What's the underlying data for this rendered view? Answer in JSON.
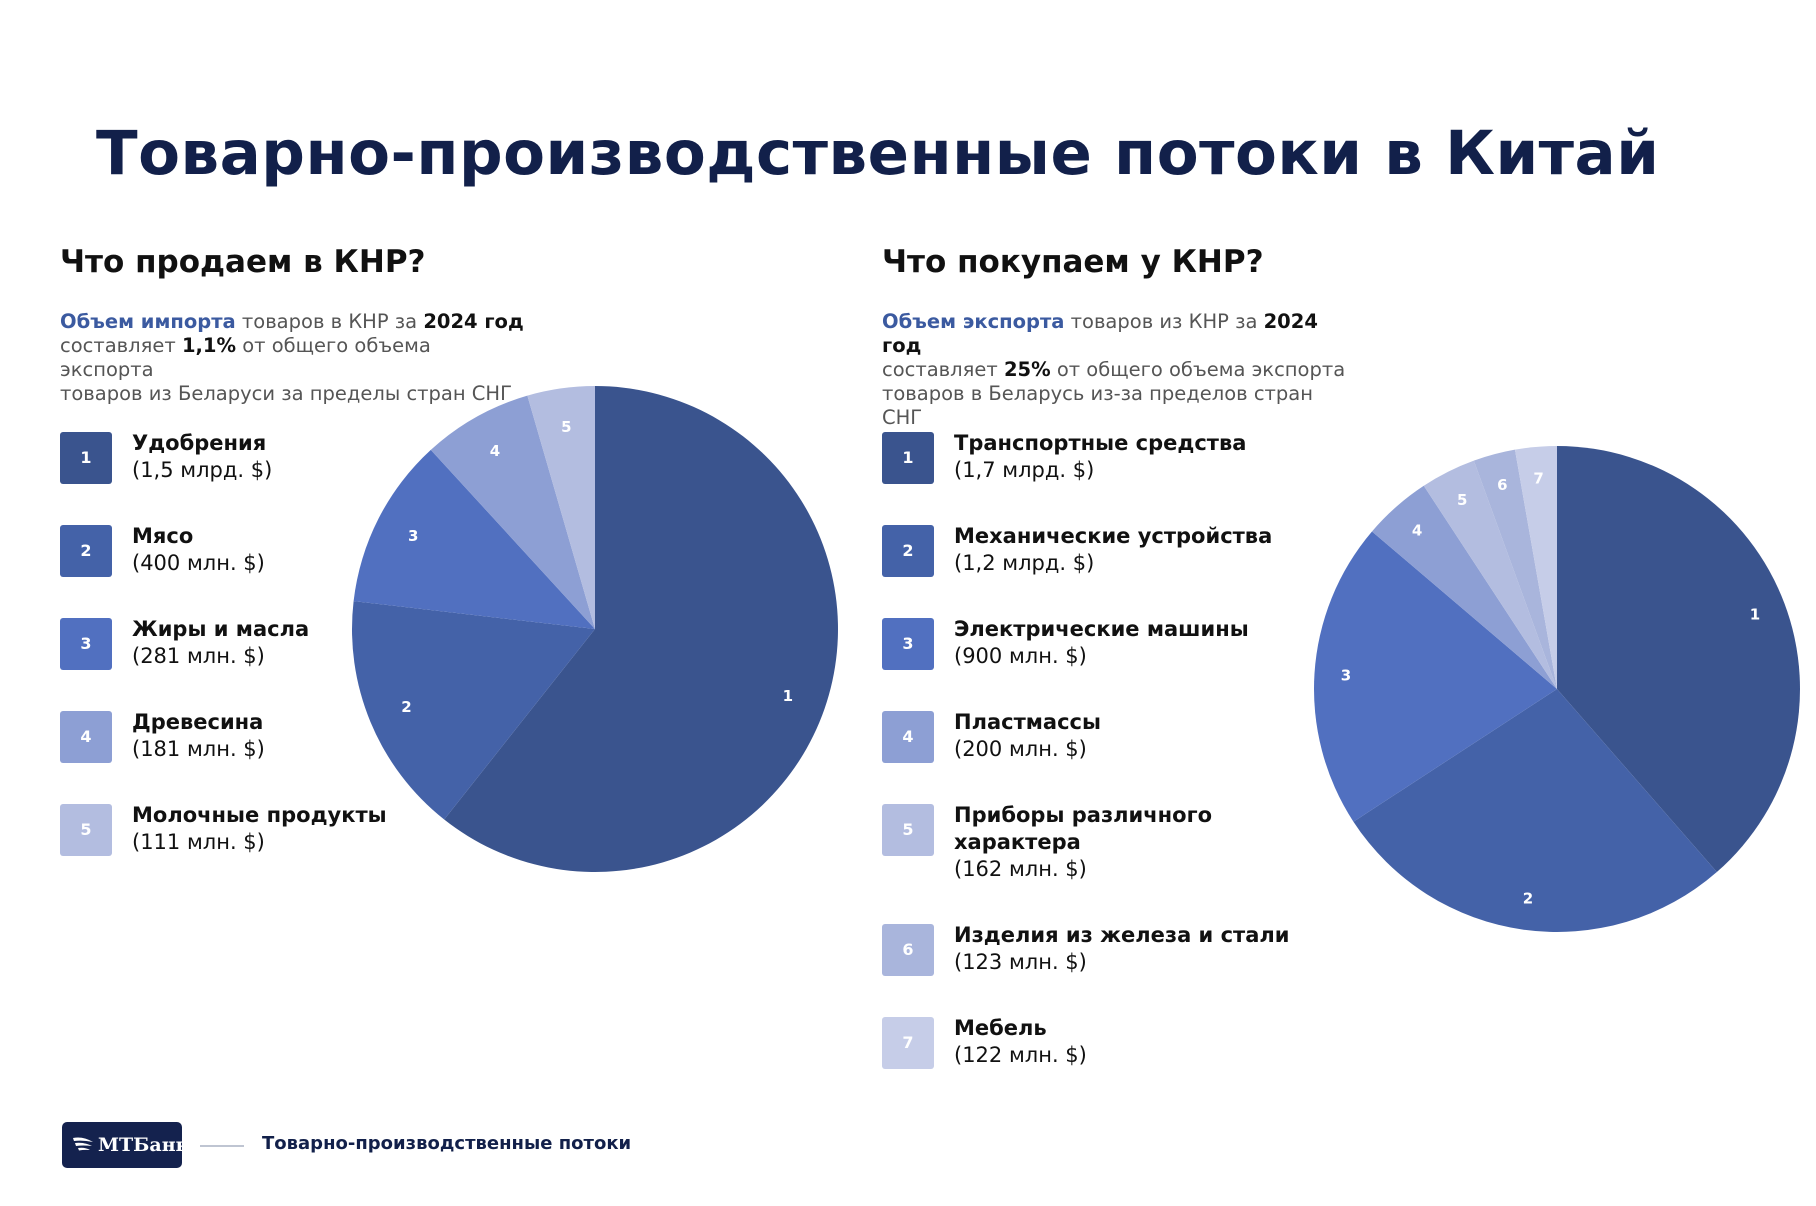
{
  "title": "Товарно-производственные потоки в Китай",
  "colors": [
    "#3a548e",
    "#4462a8",
    "#5170c0",
    "#8d9fd4",
    "#b3bde0",
    "#a9b5dc",
    "#c6cde8"
  ],
  "left": {
    "heading": "Что продаем в КНР?",
    "desc": {
      "label": "Объем импорта",
      "text1": " товаров в КНР за ",
      "year": "2024 год",
      "text2": "составляет ",
      "share": "1,1%",
      "text3": " от общего объема экспорта",
      "text4": "товаров из Беларуси за пределы стран СНГ"
    },
    "items": [
      {
        "num": "1",
        "name": "Удобрения",
        "value": "(1,5 млрд. $)"
      },
      {
        "num": "2",
        "name": "Мясо",
        "value": "(400 млн. $)"
      },
      {
        "num": "3",
        "name": "Жиры и масла",
        "value": "(281 млн. $)"
      },
      {
        "num": "4",
        "name": "Древесина",
        "value": "(181 млн. $)"
      },
      {
        "num": "5",
        "name": "Молочные продукты",
        "value": "(111 млн. $)"
      }
    ]
  },
  "right": {
    "heading": "Что покупаем у КНР?",
    "desc": {
      "label": "Объем экспорта",
      "text1": " товаров из КНР за ",
      "year": "2024 год",
      "text2": "составляет ",
      "share": "25%",
      "text3": " от общего объема экспорта",
      "text4": "товаров в Беларусь из-за пределов стран СНГ"
    },
    "items": [
      {
        "num": "1",
        "name": "Транспортные средства",
        "value": "(1,7 млрд. $)"
      },
      {
        "num": "2",
        "name": "Механические устройства",
        "value": "(1,2 млрд. $)"
      },
      {
        "num": "3",
        "name": "Электрические машины",
        "value": "(900 млн. $)"
      },
      {
        "num": "4",
        "name": "Пластмассы",
        "value": "(200 млн. $)"
      },
      {
        "num": "5",
        "name": "Приборы различного характера",
        "value": "(162 млн. $)"
      },
      {
        "num": "6",
        "name": "Изделия из железа и стали",
        "value": "(123 млн. $)"
      },
      {
        "num": "7",
        "name": "Мебель",
        "value": "(122 млн. $)"
      }
    ]
  },
  "chart_data": [
    {
      "type": "pie",
      "categories": [
        "1",
        "2",
        "3",
        "4",
        "5"
      ],
      "values": [
        1500,
        400,
        281,
        181,
        111
      ],
      "unit": "млн. $"
    },
    {
      "type": "pie",
      "categories": [
        "1",
        "2",
        "3",
        "4",
        "5",
        "6",
        "7"
      ],
      "values": [
        1700,
        1200,
        900,
        200,
        162,
        123,
        122
      ],
      "unit": "млн. $"
    }
  ],
  "footer": {
    "logo": "МТБанк",
    "text": "Товарно-производственные потоки"
  }
}
